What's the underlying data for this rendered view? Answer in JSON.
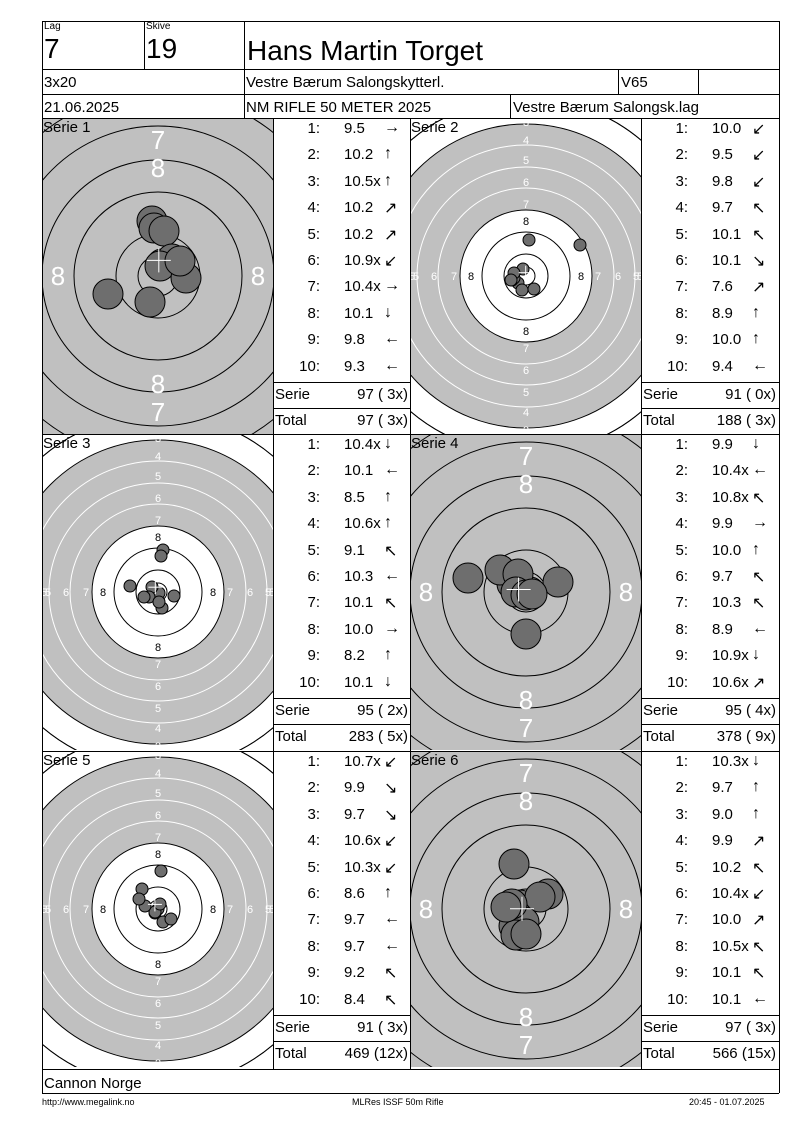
{
  "header": {
    "lag_label": "Lag",
    "lag": "7",
    "skive_label": "Skive",
    "skive": "19",
    "name": "Hans Martin Torget",
    "program": "3x20",
    "club": "Vestre Bærum Salongskytterl.",
    "klasse": "V65",
    "date": "21.06.2025",
    "event": "NM RIFLE 50 METER 2025",
    "team": "Vestre Bærum Salongsk.lag"
  },
  "series": [
    {
      "title": "Serie 1",
      "target": "prone",
      "shots": [
        "9.5",
        "10.2",
        "10.5x",
        "10.2",
        "10.2",
        "10.9x",
        "10.4x",
        "10.1",
        "9.8",
        "9.3"
      ],
      "arrows": [
        "→",
        "↑",
        "↑",
        "↗",
        "↗",
        "↙",
        "→",
        "↓",
        "←",
        "←"
      ],
      "serie_label": "Serie",
      "serie": "97 ( 3x)",
      "total_label": "Total",
      "total": "97 ( 3x)",
      "hits": [
        [
          -0.06,
          0.55
        ],
        [
          0.04,
          0.12
        ],
        [
          -0.04,
          0.48
        ],
        [
          0.06,
          0.45
        ],
        [
          0.14,
          0.17
        ],
        [
          0.02,
          0.1
        ],
        [
          0.28,
          -0.02
        ],
        [
          -0.08,
          -0.26
        ],
        [
          0.22,
          0.15
        ],
        [
          -0.5,
          -0.18
        ]
      ]
    },
    {
      "title": "Serie 2",
      "target": "standing",
      "shots": [
        "10.0",
        "9.5",
        "9.8",
        "9.7",
        "10.1",
        "10.1",
        "7.6",
        "8.9",
        "10.0",
        "9.4"
      ],
      "arrows": [
        "↙",
        "↙",
        "↙",
        "↖",
        "↖",
        "↘",
        "↗",
        "↑",
        "↑",
        "←"
      ],
      "serie_label": "Serie",
      "serie": "91 ( 0x)",
      "total_label": "Total",
      "total": "188 ( 3x)",
      "hits": [
        [
          -0.03,
          0.07
        ],
        [
          -0.08,
          -0.07
        ],
        [
          -0.14,
          -0.04
        ],
        [
          -0.12,
          -0.02
        ],
        [
          -0.04,
          -0.14
        ],
        [
          -0.12,
          0.03
        ],
        [
          0.54,
          0.31
        ],
        [
          0.03,
          0.36
        ],
        [
          0.08,
          -0.13
        ],
        [
          -0.15,
          -0.04
        ]
      ]
    },
    {
      "title": "Serie 3",
      "target": "standing",
      "shots": [
        "10.4x",
        "10.1",
        "8.5",
        "10.6x",
        "9.1",
        "10.3",
        "10.1",
        "10.0",
        "8.2",
        "10.1"
      ],
      "arrows": [
        "↓",
        "←",
        "↑",
        "↑",
        "↖",
        "←",
        "↖",
        "→",
        "↑",
        "↓"
      ],
      "serie_label": "Serie",
      "serie": "95 ( 2x)",
      "total_label": "Total",
      "total": "283 ( 5x)",
      "hits": [
        [
          0.01,
          -0.01
        ],
        [
          -0.06,
          0.05
        ],
        [
          0.05,
          0.42
        ],
        [
          0.03,
          0.36
        ],
        [
          -0.28,
          0.06
        ],
        [
          -0.09,
          -0.05
        ],
        [
          -0.14,
          -0.05
        ],
        [
          0.16,
          -0.04
        ],
        [
          0.04,
          -0.16
        ],
        [
          0.01,
          -0.1
        ]
      ]
    },
    {
      "title": "Serie 4",
      "target": "prone",
      "shots": [
        "9.9",
        "10.4x",
        "10.8x",
        "9.9",
        "10.0",
        "9.7",
        "10.3",
        "8.9",
        "10.9x",
        "10.6x"
      ],
      "arrows": [
        "↓",
        "←",
        "↖",
        "→",
        "↑",
        "↖",
        "↖",
        "←",
        "↓",
        "↗"
      ],
      "serie_label": "Serie",
      "serie": "95 ( 4x)",
      "total_label": "Total",
      "total": "378 ( 9x)",
      "hits": [
        [
          0.0,
          -0.42
        ],
        [
          -0.14,
          0.08
        ],
        [
          0.04,
          0.0
        ],
        [
          0.32,
          0.1
        ],
        [
          -0.26,
          0.22
        ],
        [
          -0.08,
          0.18
        ],
        [
          -0.1,
          0.0
        ],
        [
          -0.58,
          0.14
        ],
        [
          0.0,
          -0.03
        ],
        [
          0.06,
          -0.02
        ]
      ]
    },
    {
      "title": "Serie 5",
      "target": "standing",
      "shots": [
        "10.7x",
        "9.9",
        "9.7",
        "10.6x",
        "10.3x",
        "8.6",
        "9.7",
        "9.7",
        "9.2",
        "8.4"
      ],
      "arrows": [
        "↙",
        "↘",
        "↘",
        "↙",
        "↙",
        "↑",
        "←",
        "←",
        "↖",
        "↖"
      ],
      "serie_label": "Serie",
      "serie": "91 ( 3x)",
      "total_label": "Total",
      "total": "469 (12x)",
      "hits": [
        [
          0.0,
          0.0
        ],
        [
          -0.03,
          -0.04
        ],
        [
          -0.03,
          -0.03
        ],
        [
          0.02,
          0.05
        ],
        [
          0.05,
          -0.13
        ],
        [
          0.03,
          0.38
        ],
        [
          -0.16,
          0.2
        ],
        [
          -0.13,
          0.03
        ],
        [
          0.13,
          -0.1
        ],
        [
          -0.19,
          0.1
        ]
      ]
    },
    {
      "title": "Serie 6",
      "target": "prone",
      "shots": [
        "10.3x",
        "9.7",
        "9.0",
        "9.9",
        "10.2",
        "10.4x",
        "10.0",
        "10.5x",
        "10.1",
        "10.1"
      ],
      "arrows": [
        "↓",
        "↑",
        "↑",
        "↗",
        "↖",
        "↙",
        "↗",
        "↖",
        "↖",
        "←"
      ],
      "serie_label": "Serie",
      "serie": "97 ( 3x)",
      "total_label": "Total",
      "total": "566 (15x)",
      "hits": [
        [
          -0.06,
          0.04
        ],
        [
          0.22,
          0.15
        ],
        [
          -0.12,
          -0.17
        ],
        [
          0.14,
          0.12
        ],
        [
          -0.02,
          -0.13
        ],
        [
          -0.1,
          -0.26
        ],
        [
          -0.14,
          0.05
        ],
        [
          0.0,
          -0.25
        ],
        [
          -0.12,
          0.45
        ],
        [
          -0.2,
          0.02
        ]
      ]
    }
  ],
  "footer": {
    "org": "Cannon Norge",
    "url": "http://www.megalink.no",
    "software": "MLRes ISSF 50m Rifle",
    "timestamp": "20:45 - 01.07.2025"
  },
  "colors": {
    "target_gray": "#c0c0c0",
    "hit_fill": "#6e6e6e"
  }
}
